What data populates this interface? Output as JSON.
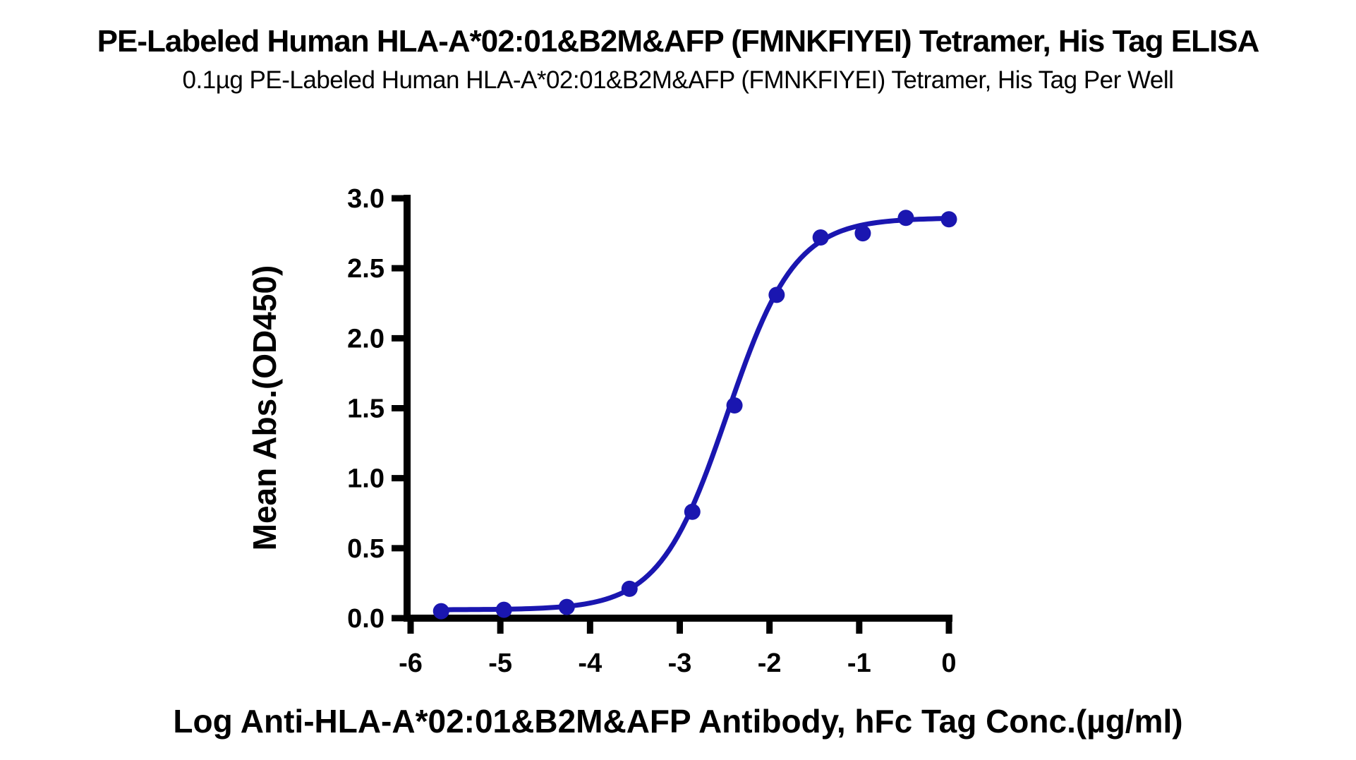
{
  "chart_data": {
    "type": "scatter",
    "title": "PE-Labeled Human HLA-A*02:01&B2M&AFP (FMNKFIYEI) Tetramer, His Tag ELISA",
    "subtitle": "0.1µg PE-Labeled Human HLA-A*02:01&B2M&AFP (FMNKFIYEI) Tetramer, His Tag Per Well",
    "xlabel": "Log Anti-HLA-A*02:01&B2M&AFP Antibody, hFc Tag Conc.(µg/ml)",
    "ylabel": "Mean Abs.(OD450)",
    "x": [
      -5.66,
      -4.96,
      -4.26,
      -3.56,
      -2.86,
      -2.39,
      -1.92,
      -1.43,
      -0.96,
      -0.48,
      0.0
    ],
    "y": [
      0.05,
      0.06,
      0.08,
      0.21,
      0.76,
      1.52,
      2.31,
      2.72,
      2.75,
      2.86,
      2.85
    ],
    "xlim": [
      -6,
      0
    ],
    "ylim": [
      0,
      3
    ],
    "xticks": [
      -6,
      -5,
      -4,
      -3,
      -2,
      -1,
      0
    ],
    "xtick_labels": [
      "-6",
      "-5",
      "-4",
      "-3",
      "-2",
      "-1",
      "0"
    ],
    "yticks": [
      0,
      0.5,
      1,
      1.5,
      2,
      2.5,
      3
    ],
    "ytick_labels": [
      "0.0",
      "0.5",
      "1.0",
      "1.5",
      "2.0",
      "2.5",
      "3.0"
    ],
    "grid": false,
    "legend": "none",
    "colors": {
      "curve": "#1a16b0",
      "marker": "#1a16b0",
      "axis": "#000000",
      "text": "#000000",
      "background": "#ffffff"
    },
    "fit_curve": {
      "model": "4PL sigmoid (estimated from plotted curve)",
      "bottom": 0.06,
      "top": 2.86,
      "logEC50": -2.47,
      "hill": 1.15
    }
  }
}
